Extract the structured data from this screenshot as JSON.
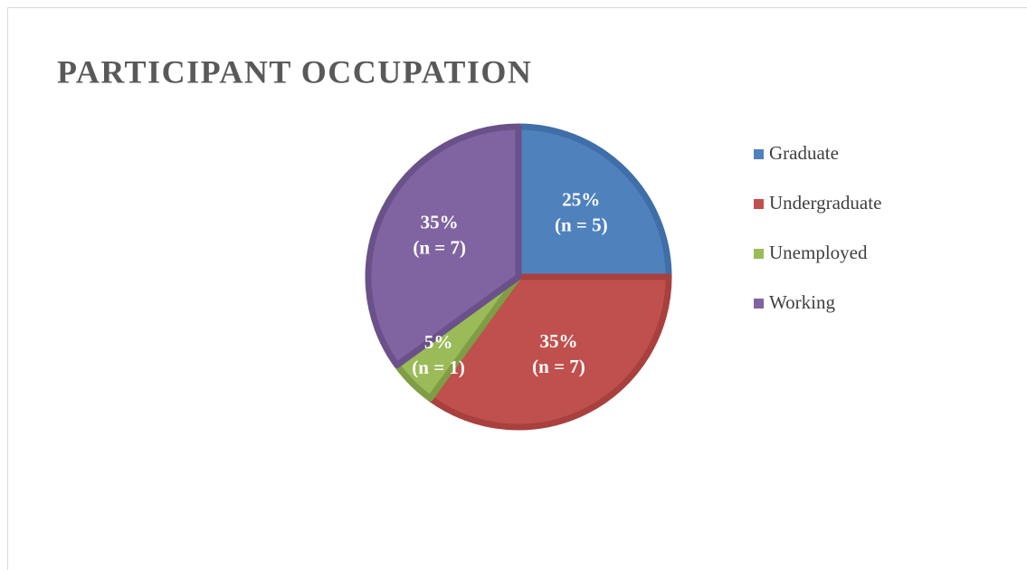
{
  "chart_data": {
    "type": "pie",
    "title": "PARTICIPANT OCCUPATION",
    "categories": [
      "Graduate",
      "Undergraduate",
      "Unemployed",
      "Working"
    ],
    "values": [
      25,
      35,
      5,
      35
    ],
    "value_labels": [
      "25%",
      "35%",
      "5%",
      "35%"
    ],
    "count_labels": [
      "(n = 5)",
      "(n = 7)",
      "(n = 1)",
      "(n = 7)"
    ],
    "colors": [
      "#4f81bd",
      "#c0504d",
      "#9bbb59",
      "#8064a2"
    ],
    "border_colors": [
      "#3f6ea8",
      "#a8403d",
      "#7f9d45",
      "#6a5189"
    ],
    "legend": "right"
  }
}
